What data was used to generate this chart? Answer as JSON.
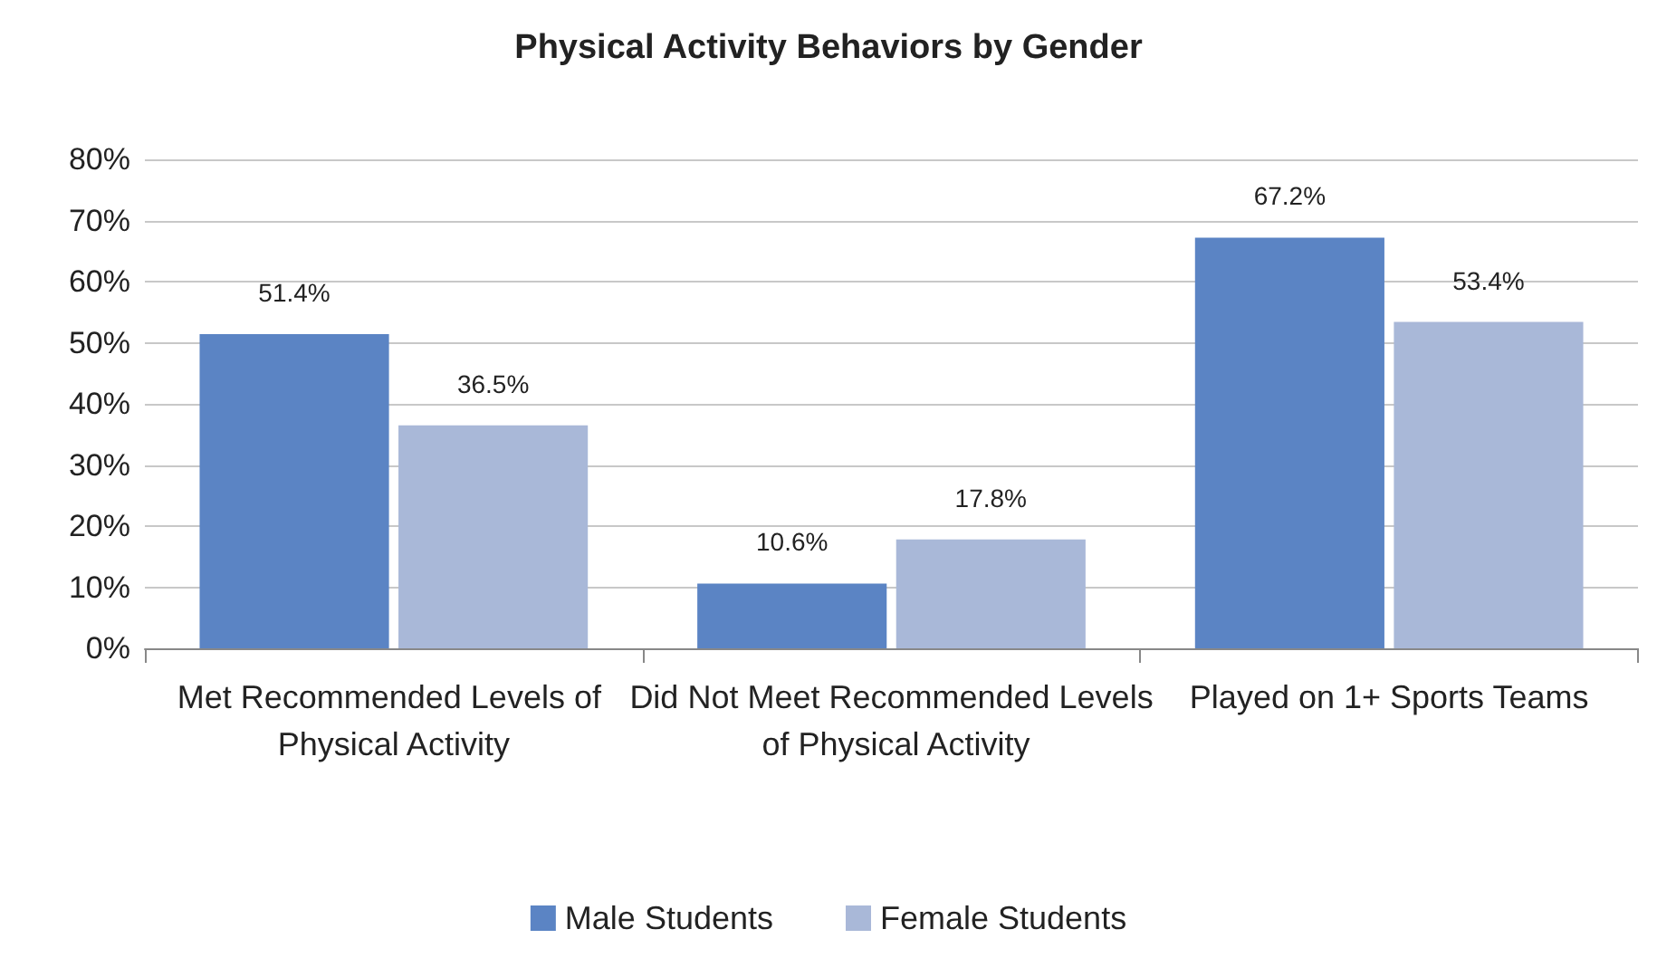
{
  "chart_data": {
    "type": "bar",
    "title": "Physical Activity Behaviors by Gender",
    "categories": [
      "Met Recommended Levels of Physical Activity",
      "Did Not Meet Recommended Levels of Physical Activity",
      "Played on 1+ Sports Teams"
    ],
    "series": [
      {
        "name": "Male Students",
        "color": "#5b84c4",
        "values": [
          51.4,
          10.6,
          67.2
        ],
        "value_labels": [
          "51.4%",
          "10.6%",
          "67.2%"
        ]
      },
      {
        "name": "Female Students",
        "color": "#a9b8d8",
        "values": [
          36.5,
          17.8,
          53.4
        ],
        "value_labels": [
          "36.5%",
          "17.8%",
          "53.4%"
        ]
      }
    ],
    "ylim": [
      0,
      80
    ],
    "yticks": [
      {
        "value": 0,
        "label": "0%"
      },
      {
        "value": 10,
        "label": "10%"
      },
      {
        "value": 20,
        "label": "20%"
      },
      {
        "value": 30,
        "label": "30%"
      },
      {
        "value": 40,
        "label": "40%"
      },
      {
        "value": 50,
        "label": "50%"
      },
      {
        "value": 60,
        "label": "60%"
      },
      {
        "value": 70,
        "label": "70%"
      },
      {
        "value": 80,
        "label": "80%"
      }
    ],
    "grid": "y",
    "legend": "bottom"
  }
}
